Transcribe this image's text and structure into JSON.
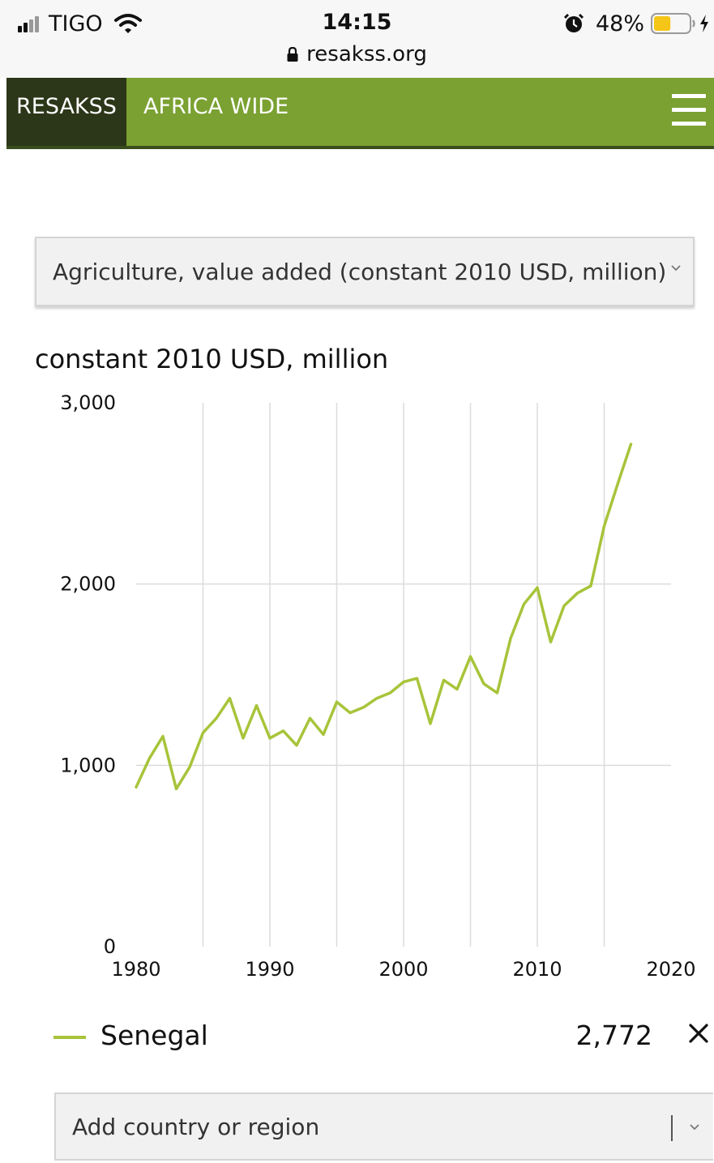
{
  "status_bar": {
    "carrier": "TIGO",
    "time": "14:15",
    "url": "resakss.org",
    "battery": "48%",
    "battery_level": 0.48,
    "battery_color": "#f5c518"
  },
  "header": {
    "brand": "RESAKSS",
    "section": "AFRICA WIDE",
    "bg_color": "#7aa132",
    "brand_bg_color": "#2c3618"
  },
  "indicator": {
    "selected": "Agriculture, value added (constant 2010 USD, million)"
  },
  "chart_unit": "constant 2010 USD, million",
  "chart_data": {
    "type": "line",
    "title": "",
    "xlabel": "",
    "ylabel": "constant 2010 USD, million",
    "xlim": [
      1980,
      2020
    ],
    "ylim": [
      0,
      3000
    ],
    "x_ticks": [
      "1980",
      "1990",
      "2000",
      "2010",
      "2020"
    ],
    "y_ticks": [
      "0",
      "1,000",
      "2,000",
      "3,000"
    ],
    "grid": true,
    "series": [
      {
        "name": "Senegal",
        "color": "#a7c43a",
        "x": [
          1980,
          1981,
          1982,
          1983,
          1984,
          1985,
          1986,
          1987,
          1988,
          1989,
          1990,
          1991,
          1992,
          1993,
          1994,
          1995,
          1996,
          1997,
          1998,
          1999,
          2000,
          2001,
          2002,
          2003,
          2004,
          2005,
          2006,
          2007,
          2008,
          2009,
          2010,
          2011,
          2012,
          2013,
          2014,
          2015,
          2016,
          2017
        ],
        "y": [
          880,
          1040,
          1160,
          870,
          990,
          1180,
          1260,
          1370,
          1150,
          1330,
          1150,
          1190,
          1110,
          1260,
          1170,
          1350,
          1290,
          1320,
          1370,
          1400,
          1460,
          1480,
          1230,
          1470,
          1420,
          1600,
          1450,
          1400,
          1700,
          1890,
          1980,
          1680,
          1880,
          1950,
          1990,
          2320,
          2550,
          2772
        ]
      }
    ]
  },
  "legend": {
    "country": "Senegal",
    "value": "2,772"
  },
  "country_select": {
    "placeholder": "Add country or region"
  }
}
